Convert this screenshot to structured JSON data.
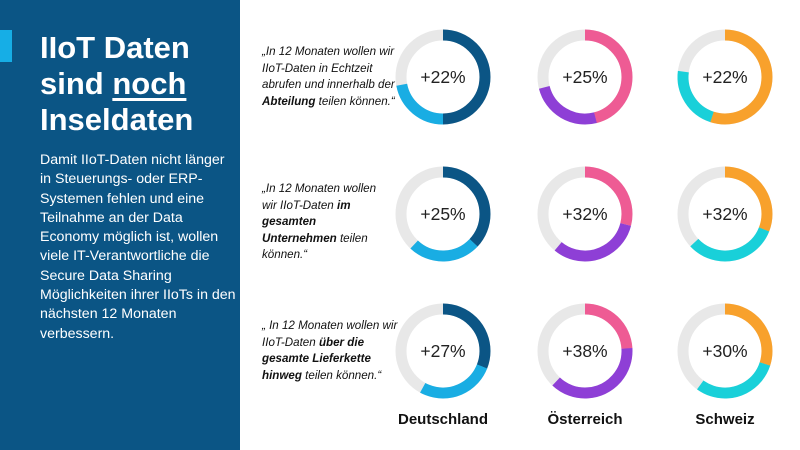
{
  "sidebar": {
    "title_line1": "IIoT Daten",
    "title_line2_pre": "sind ",
    "title_line2_underlined": "noch",
    "title_line3": "Inseldaten",
    "body": "Damit IIoT-Daten nicht länger in Steuerungs- oder ERP-Systemen fehlen und eine Teilnahme an der Data Economy möglich ist, wollen viele IT-Verantwortliche die Secure Data Sharing Möglichkeiten ihrer IIoTs in den nächsten 12 Monaten verbessern."
  },
  "quotes": [
    {
      "pre": "„In 12 Monaten wollen wir IIoT-Daten in Echtzeit abrufen und innerhalb der ",
      "bold": "Abteilung",
      "post": " teilen können.“"
    },
    {
      "pre": "„In 12 Monaten wollen wir IIoT-Daten ",
      "bold": "im gesamten Unternehmen",
      "post": " teilen können.“"
    },
    {
      "pre": "„ In 12 Monaten wollen wir IIoT-Daten ",
      "bold": "über die gesamte Lieferkette hinweg",
      "post": " teilen können.“"
    }
  ],
  "chart_data": {
    "type": "donut-grid",
    "countries": [
      "Deutschland",
      "Österreich",
      "Schweiz"
    ],
    "colors": {
      "Deutschland": [
        "#0b5585",
        "#19ade3"
      ],
      "Österreich": [
        "#ee5b94",
        "#8e3fd6"
      ],
      "Schweiz": [
        "#f8a12c",
        "#19d0d9"
      ],
      "track": "#e8e8e8"
    },
    "rows": [
      {
        "values": [
          {
            "base": 0.5,
            "increase": 0.22,
            "label": "+22%"
          },
          {
            "base": 0.46,
            "increase": 0.25,
            "label": "+25%"
          },
          {
            "base": 0.55,
            "increase": 0.22,
            "label": "+22%"
          }
        ]
      },
      {
        "values": [
          {
            "base": 0.37,
            "increase": 0.25,
            "label": "+25%"
          },
          {
            "base": 0.29,
            "increase": 0.32,
            "label": "+32%"
          },
          {
            "base": 0.31,
            "increase": 0.32,
            "label": "+32%"
          }
        ]
      },
      {
        "values": [
          {
            "base": 0.31,
            "increase": 0.27,
            "label": "+27%"
          },
          {
            "base": 0.24,
            "increase": 0.38,
            "label": "+38%"
          },
          {
            "base": 0.3,
            "increase": 0.3,
            "label": "+30%"
          }
        ]
      }
    ]
  }
}
